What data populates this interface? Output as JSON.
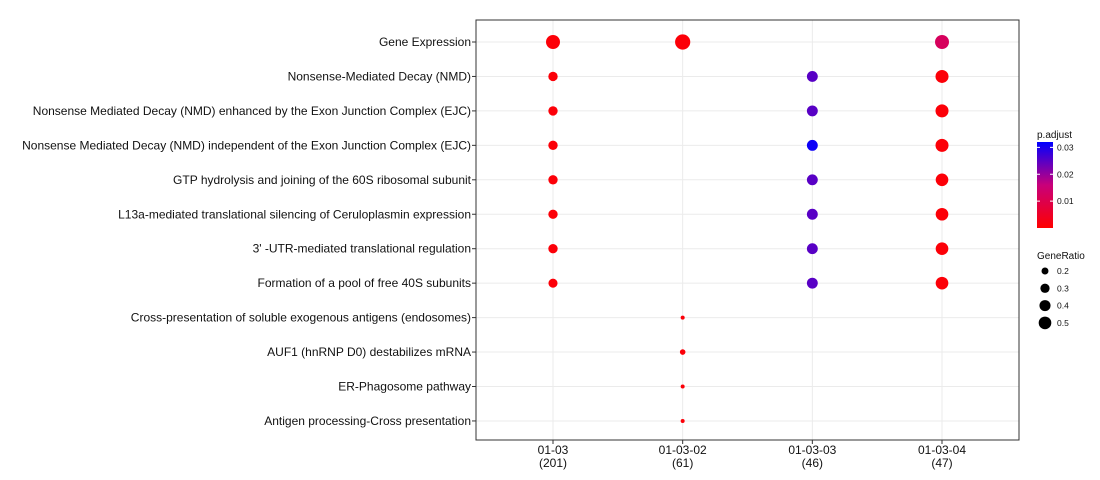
{
  "chart_data": {
    "type": "scatter",
    "title": "",
    "xlabel": "",
    "ylabel": "",
    "categories": [
      {
        "label": "01-03",
        "count": "(201)"
      },
      {
        "label": "01-03-02",
        "count": "(61)"
      },
      {
        "label": "01-03-03",
        "count": "(46)"
      },
      {
        "label": "01-03-04",
        "count": "(47)"
      }
    ],
    "terms": [
      "Gene Expression",
      "Nonsense-Mediated Decay (NMD)",
      "Nonsense Mediated Decay (NMD) enhanced by the Exon Junction Complex (EJC)",
      "Nonsense Mediated Decay (NMD) independent of the Exon Junction Complex (EJC)",
      "GTP hydrolysis and joining of the 60S ribosomal subunit",
      "L13a-mediated translational silencing of Ceruloplasmin expression",
      "3' -UTR-mediated translational regulation",
      "Formation of a pool of free 40S subunits",
      "Cross-presentation of soluble exogenous antigens (endosomes)",
      "AUF1 (hnRNP D0) destabilizes mRNA",
      "ER-Phagosome pathway",
      "Antigen processing-Cross presentation"
    ],
    "points": [
      {
        "cluster": "01-03",
        "term": "Gene Expression",
        "gene_ratio": 0.45,
        "p_adjust": 0.001
      },
      {
        "cluster": "01-03",
        "term": "Nonsense-Mediated Decay (NMD)",
        "gene_ratio": 0.24,
        "p_adjust": 0.001
      },
      {
        "cluster": "01-03",
        "term": "Nonsense Mediated Decay (NMD) enhanced by the Exon Junction Complex (EJC)",
        "gene_ratio": 0.24,
        "p_adjust": 0.001
      },
      {
        "cluster": "01-03",
        "term": "Nonsense Mediated Decay (NMD) independent of the Exon Junction Complex (EJC)",
        "gene_ratio": 0.24,
        "p_adjust": 0.001
      },
      {
        "cluster": "01-03",
        "term": "GTP hydrolysis and joining of the 60S ribosomal subunit",
        "gene_ratio": 0.24,
        "p_adjust": 0.001
      },
      {
        "cluster": "01-03",
        "term": "L13a-mediated translational silencing of Ceruloplasmin expression",
        "gene_ratio": 0.24,
        "p_adjust": 0.001
      },
      {
        "cluster": "01-03",
        "term": "3' -UTR-mediated translational regulation",
        "gene_ratio": 0.24,
        "p_adjust": 0.001
      },
      {
        "cluster": "01-03",
        "term": "Formation of a pool of free 40S subunits",
        "gene_ratio": 0.23,
        "p_adjust": 0.001
      },
      {
        "cluster": "01-03-02",
        "term": "Gene Expression",
        "gene_ratio": 0.52,
        "p_adjust": 0.001
      },
      {
        "cluster": "01-03-02",
        "term": "Cross-presentation of soluble exogenous antigens (endosomes)",
        "gene_ratio": 0.1,
        "p_adjust": 0.001
      },
      {
        "cluster": "01-03-02",
        "term": "AUF1 (hnRNP D0) destabilizes mRNA",
        "gene_ratio": 0.13,
        "p_adjust": 0.001
      },
      {
        "cluster": "01-03-02",
        "term": "ER-Phagosome pathway",
        "gene_ratio": 0.1,
        "p_adjust": 0.001
      },
      {
        "cluster": "01-03-02",
        "term": "Antigen processing-Cross presentation",
        "gene_ratio": 0.1,
        "p_adjust": 0.001
      },
      {
        "cluster": "01-03-03",
        "term": "Nonsense-Mediated Decay (NMD)",
        "gene_ratio": 0.3,
        "p_adjust": 0.025
      },
      {
        "cluster": "01-03-03",
        "term": "Nonsense Mediated Decay (NMD) enhanced by the Exon Junction Complex (EJC)",
        "gene_ratio": 0.3,
        "p_adjust": 0.025
      },
      {
        "cluster": "01-03-03",
        "term": "Nonsense Mediated Decay (NMD) independent of the Exon Junction Complex (EJC)",
        "gene_ratio": 0.3,
        "p_adjust": 0.031
      },
      {
        "cluster": "01-03-03",
        "term": "GTP hydrolysis and joining of the 60S ribosomal subunit",
        "gene_ratio": 0.3,
        "p_adjust": 0.025
      },
      {
        "cluster": "01-03-03",
        "term": "L13a-mediated translational silencing of Ceruloplasmin expression",
        "gene_ratio": 0.3,
        "p_adjust": 0.025
      },
      {
        "cluster": "01-03-03",
        "term": "3' -UTR-mediated translational regulation",
        "gene_ratio": 0.3,
        "p_adjust": 0.025
      },
      {
        "cluster": "01-03-03",
        "term": "Formation of a pool of free 40S subunits",
        "gene_ratio": 0.3,
        "p_adjust": 0.025
      },
      {
        "cluster": "01-03-04",
        "term": "Gene Expression",
        "gene_ratio": 0.45,
        "p_adjust": 0.012
      },
      {
        "cluster": "01-03-04",
        "term": "Nonsense-Mediated Decay (NMD)",
        "gene_ratio": 0.4,
        "p_adjust": 0.001
      },
      {
        "cluster": "01-03-04",
        "term": "Nonsense Mediated Decay (NMD) enhanced by the Exon Junction Complex (EJC)",
        "gene_ratio": 0.4,
        "p_adjust": 0.001
      },
      {
        "cluster": "01-03-04",
        "term": "Nonsense Mediated Decay (NMD) independent of the Exon Junction Complex (EJC)",
        "gene_ratio": 0.4,
        "p_adjust": 0.001
      },
      {
        "cluster": "01-03-04",
        "term": "GTP hydrolysis and joining of the 60S ribosomal subunit",
        "gene_ratio": 0.38,
        "p_adjust": 0.001
      },
      {
        "cluster": "01-03-04",
        "term": "L13a-mediated translational silencing of Ceruloplasmin expression",
        "gene_ratio": 0.38,
        "p_adjust": 0.001
      },
      {
        "cluster": "01-03-04",
        "term": "3' -UTR-mediated translational regulation",
        "gene_ratio": 0.38,
        "p_adjust": 0.001
      },
      {
        "cluster": "01-03-04",
        "term": "Formation of a pool of free 40S subunits",
        "gene_ratio": 0.38,
        "p_adjust": 0.001
      }
    ],
    "color_legend": {
      "title": "p.adjust",
      "range": [
        0,
        0.032
      ],
      "ticks": [
        "0.03",
        "0.02",
        "0.01"
      ],
      "tick_values": [
        0.03,
        0.02,
        0.01
      ],
      "low_color": "#ff0000",
      "high_color": "#0000ff"
    },
    "size_legend": {
      "title": "GeneRatio",
      "labels": [
        "0.2",
        "0.3",
        "0.4",
        "0.5"
      ],
      "values": [
        0.2,
        0.3,
        0.4,
        0.5
      ],
      "range": [
        0.1,
        0.52
      ]
    },
    "legend_position": "right",
    "grid": true
  }
}
